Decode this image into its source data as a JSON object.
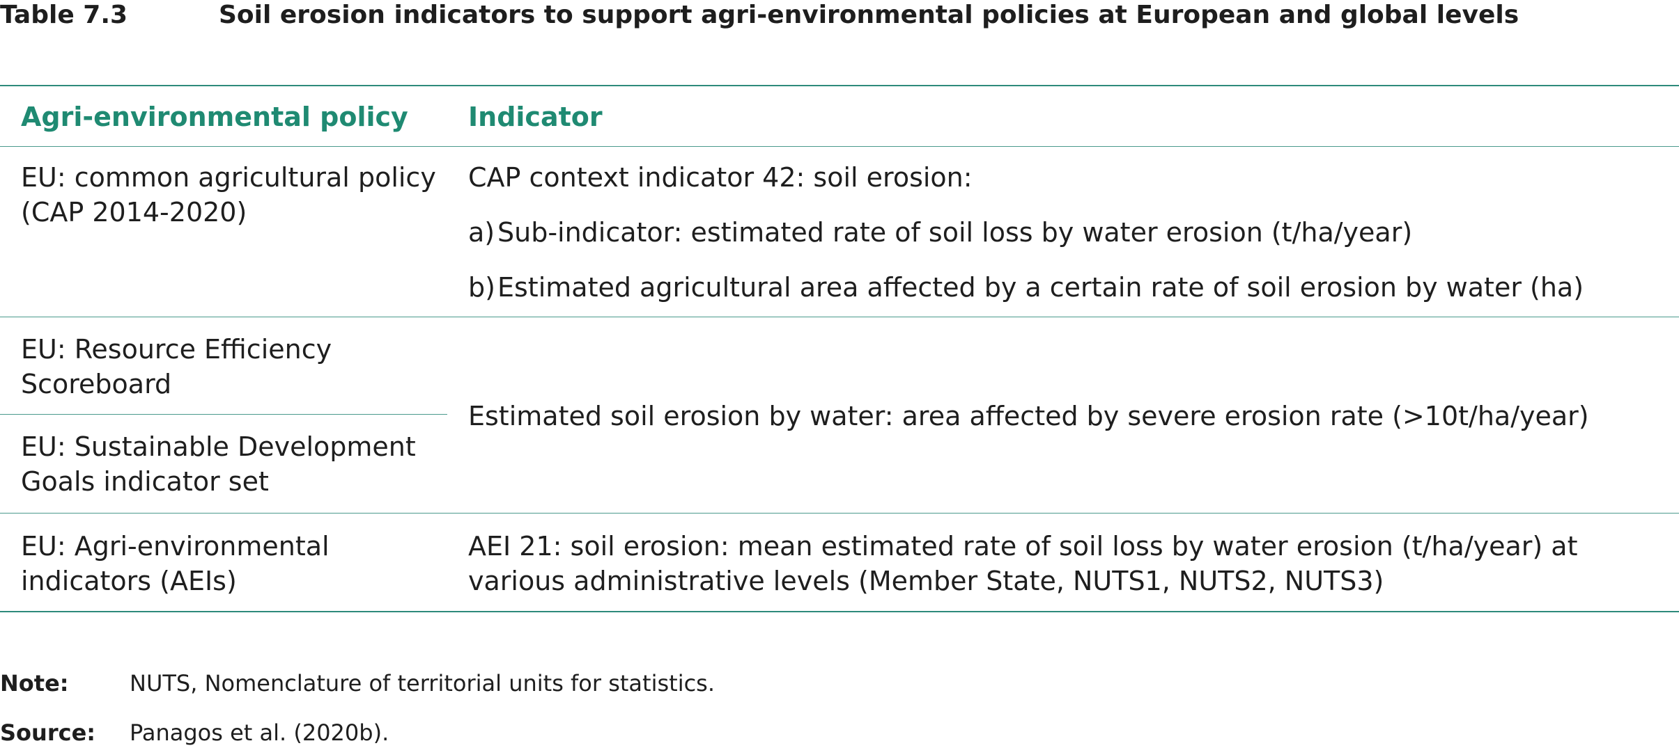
{
  "table": {
    "number": "Table 7.3",
    "title": "Soil erosion indicators to support agri-environmental policies at European and global levels",
    "headers": {
      "policy": "Agri-environmental policy",
      "indicator": "Indicator"
    },
    "rows": [
      {
        "policy": "EU: common agricultural policy (CAP 2014-2020)",
        "indicator_intro": "CAP context indicator 42: soil erosion:",
        "sub_items": [
          {
            "marker": "a)",
            "text": "Sub-indicator: estimated rate of soil loss by water erosion (t/ha/year)"
          },
          {
            "marker": "b)",
            "text": "Estimated agricultural area affected by a certain rate of soil erosion by water (ha)"
          }
        ]
      },
      {
        "policy_a": "EU: Resource Efficiency Scoreboard",
        "policy_b": "EU: Sustainable Development Goals indicator set",
        "indicator": "Estimated soil erosion by water: area affected by severe erosion rate (>10t/ha/year)"
      },
      {
        "policy": "EU: Agri-environmental indicators (AEIs)",
        "indicator": "AEI 21: soil erosion: mean estimated rate of soil loss by water erosion (t/ha/year) at various administrative levels (Member State, NUTS1, NUTS2, NUTS3)"
      }
    ]
  },
  "notes": {
    "note_label": "Note:",
    "note_text": "NUTS, Nomenclature of territorial units for statistics.",
    "source_label": "Source:",
    "source_text": "Panagos et al. (2020b)."
  },
  "colors": {
    "accent": "#1f8a72",
    "rule": "#2d8a7b"
  }
}
